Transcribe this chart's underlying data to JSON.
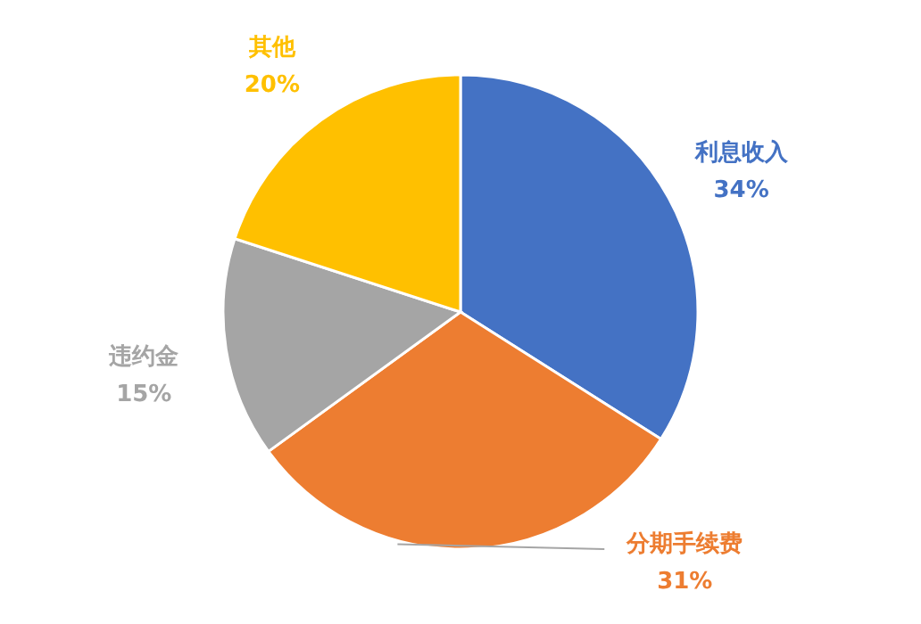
{
  "chart_data": {
    "type": "pie",
    "categories": [
      "利息收入",
      "分期手续费",
      "违约金",
      "其他"
    ],
    "values": [
      34,
      31,
      15,
      20
    ],
    "colors": [
      "#4472c4",
      "#ed7d31",
      "#a5a5a5",
      "#ffc000"
    ],
    "value_labels": [
      "34%",
      "31%",
      "15%",
      "20%"
    ]
  }
}
